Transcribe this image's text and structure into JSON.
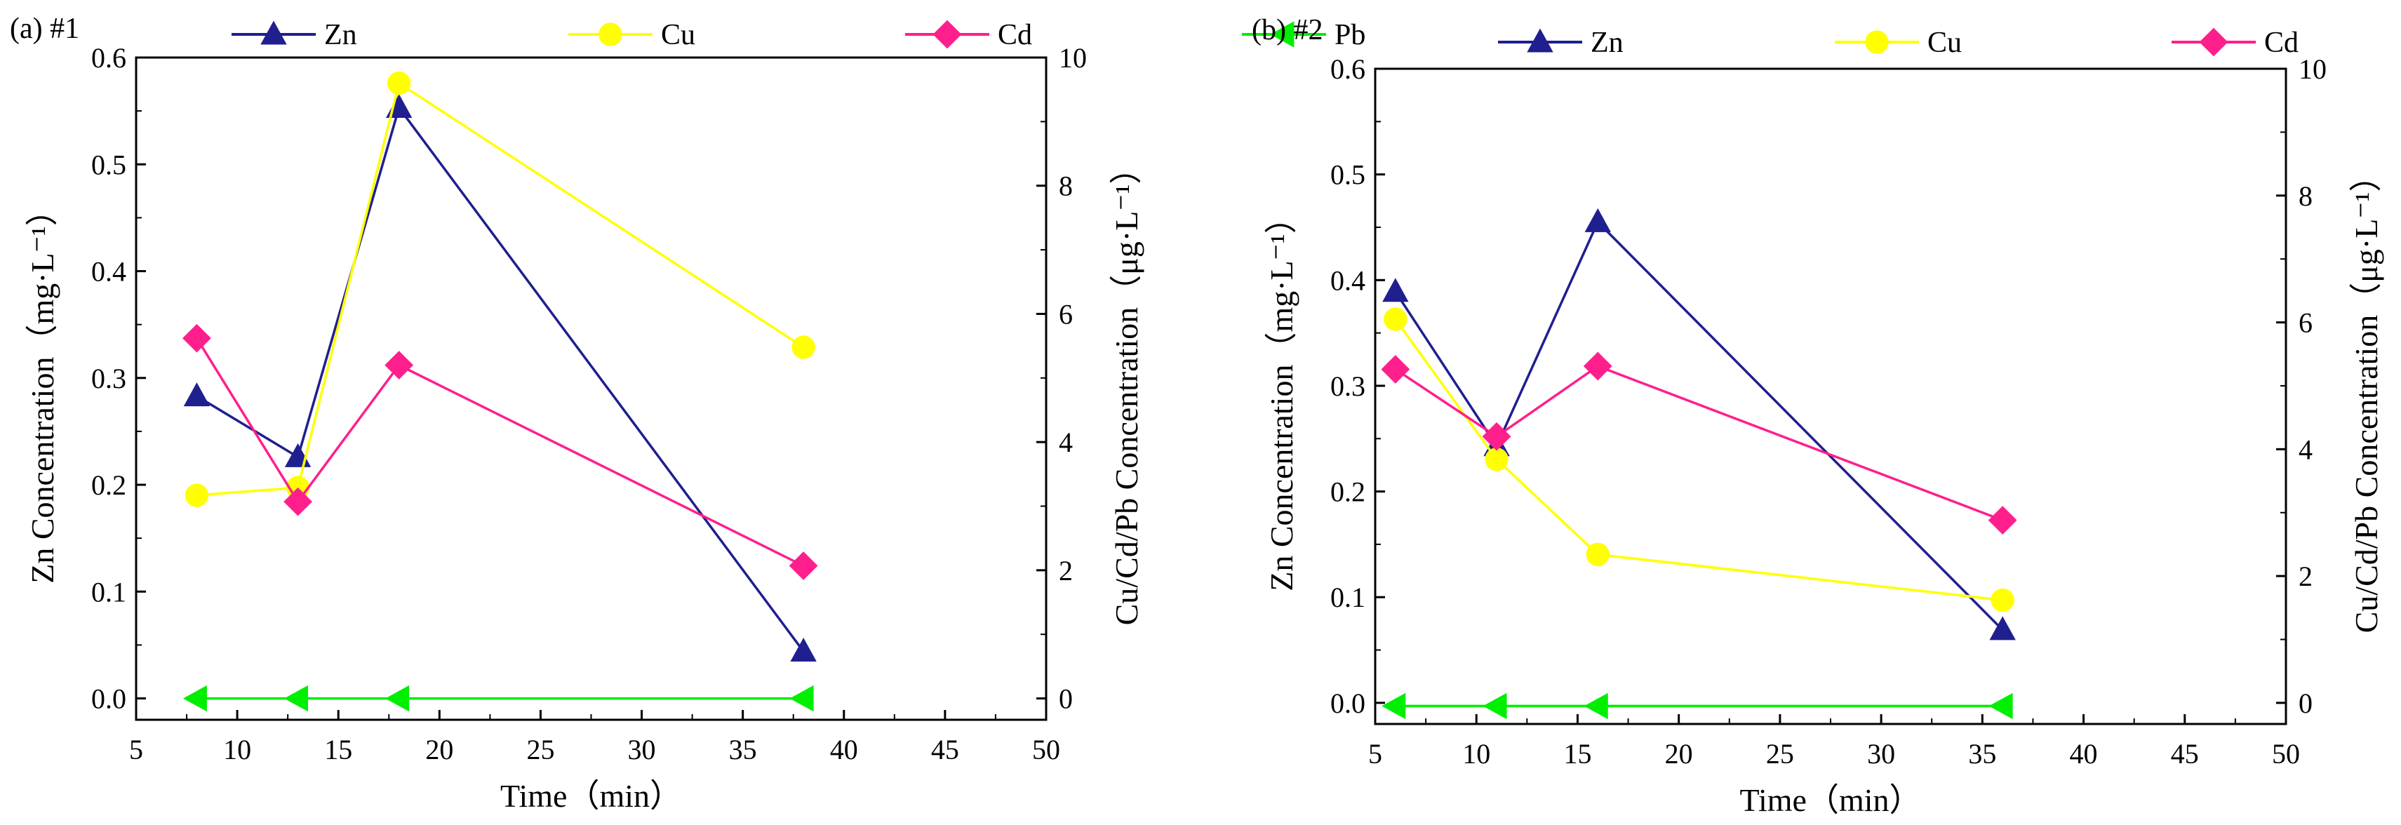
{
  "colors": {
    "Zn": "#1f1f8f",
    "Cu": "#ffff00",
    "Cd": "#ff1f8c",
    "Pb": "#00ee00",
    "axis": "#000000"
  },
  "chart_data": [
    {
      "type": "line",
      "panel_label": "(a) #1",
      "xlabel": "Time（min）",
      "ylabel_left": "Zn Concentration（mg·L⁻¹）",
      "ylabel_right": "Cu/Cd/Pb Concentration（μg·L⁻¹）",
      "xlim": [
        5,
        50
      ],
      "xticks": [
        5,
        10,
        15,
        20,
        25,
        30,
        35,
        40,
        45,
        50
      ],
      "ylim_left": [
        -0.02,
        0.6
      ],
      "yticks_left": [
        0.0,
        0.1,
        0.2,
        0.3,
        0.4,
        0.5,
        0.6
      ],
      "ylim_right": [
        -0.333,
        10
      ],
      "yticks_right": [
        0,
        2,
        4,
        6,
        8,
        10
      ],
      "legend_position": "top",
      "series": [
        {
          "name": "Zn",
          "axis": "left",
          "marker": "triangle-up",
          "x": [
            8,
            13,
            18,
            38
          ],
          "y": [
            0.283,
            0.226,
            0.553,
            0.044
          ]
        },
        {
          "name": "Cu",
          "axis": "right",
          "marker": "circle",
          "x": [
            8,
            13,
            18,
            38
          ],
          "y": [
            3.17,
            3.29,
            9.6,
            5.48
          ]
        },
        {
          "name": "Cd",
          "axis": "right",
          "marker": "diamond",
          "x": [
            8,
            13,
            18,
            38
          ],
          "y": [
            5.62,
            3.07,
            5.2,
            2.07
          ]
        },
        {
          "name": "Pb",
          "axis": "right",
          "marker": "triangle-left",
          "x": [
            8,
            13,
            18,
            38
          ],
          "y": [
            0.0,
            0.0,
            0.0,
            0.0
          ]
        }
      ]
    },
    {
      "type": "line",
      "panel_label": "(b) #2",
      "xlabel": "Time（min）",
      "ylabel_left": "Zn Concentration（mg·L⁻¹）",
      "ylabel_right": "Cu/Cd/Pb Concentration（μg·L⁻¹）",
      "xlim": [
        5,
        50
      ],
      "xticks": [
        5,
        10,
        15,
        20,
        25,
        30,
        35,
        40,
        45,
        50
      ],
      "ylim_left": [
        -0.02,
        0.6
      ],
      "yticks_left": [
        0.0,
        0.1,
        0.2,
        0.3,
        0.4,
        0.5,
        0.6
      ],
      "ylim_right": [
        -0.333,
        10
      ],
      "yticks_right": [
        0,
        2,
        4,
        6,
        8,
        10
      ],
      "legend_position": "top",
      "series": [
        {
          "name": "Zn",
          "axis": "left",
          "marker": "triangle-up",
          "x": [
            6,
            11,
            16,
            36
          ],
          "y": [
            0.389,
            0.243,
            0.455,
            0.069
          ]
        },
        {
          "name": "Cu",
          "axis": "right",
          "marker": "circle",
          "x": [
            6,
            11,
            16,
            36
          ],
          "y": [
            6.05,
            3.84,
            2.34,
            1.62
          ]
        },
        {
          "name": "Cd",
          "axis": "right",
          "marker": "diamond",
          "x": [
            6,
            11,
            16,
            36
          ],
          "y": [
            5.26,
            4.2,
            5.31,
            2.88
          ]
        },
        {
          "name": "Pb",
          "axis": "right",
          "marker": "triangle-left",
          "x": [
            6,
            11,
            16,
            36
          ],
          "y": [
            -0.05,
            -0.05,
            -0.05,
            -0.05
          ]
        }
      ]
    }
  ]
}
